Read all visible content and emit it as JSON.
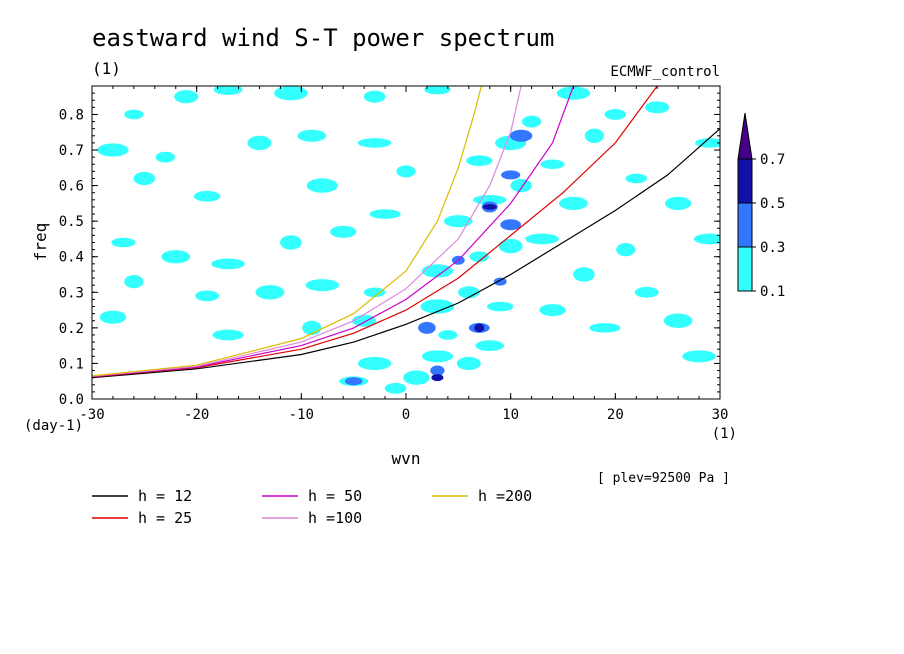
{
  "chart_data": {
    "type": "heatmap",
    "title": "eastward wind S-T power spectrum",
    "title_units": "(1)",
    "subtitle": "ECMWF_control",
    "xlabel": "wvn",
    "xunits": "(1)",
    "ylabel": "freq",
    "yunits": "(day-1)",
    "level_note": "[ plev=92500 Pa ]",
    "xlim": [
      -30,
      30
    ],
    "ylim": [
      0.0,
      0.88
    ],
    "x_ticks": [
      -30,
      -20,
      -10,
      0,
      10,
      20,
      30
    ],
    "x_tick_labels": [
      "-30",
      "-20",
      "-10",
      "0",
      "10",
      "20",
      "30"
    ],
    "y_ticks": [
      0.0,
      0.1,
      0.2,
      0.3,
      0.4,
      0.5,
      0.6,
      0.7,
      0.8
    ],
    "y_tick_labels": [
      "0.0",
      "0.1",
      "0.2",
      "0.3",
      "0.4",
      "0.5",
      "0.6",
      "0.7",
      "0.8"
    ],
    "colorbar": {
      "levels": [
        "0.1",
        "0.3",
        "0.5",
        "0.7"
      ],
      "colors": [
        "#33ffff",
        "#3377ff",
        "#1111aa",
        "#440088"
      ]
    },
    "grid": false,
    "series": [
      {
        "name": "h = 12",
        "color": "#000000",
        "points": [
          [
            -30,
            0.06
          ],
          [
            -20,
            0.085
          ],
          [
            -10,
            0.125
          ],
          [
            -5,
            0.16
          ],
          [
            0,
            0.21
          ],
          [
            5,
            0.27
          ],
          [
            10,
            0.35
          ],
          [
            15,
            0.44
          ],
          [
            20,
            0.53
          ],
          [
            25,
            0.63
          ],
          [
            30,
            0.76
          ]
        ]
      },
      {
        "name": "h = 25",
        "color": "#dd0000",
        "points": [
          [
            -30,
            0.062
          ],
          [
            -20,
            0.088
          ],
          [
            -10,
            0.14
          ],
          [
            -5,
            0.185
          ],
          [
            0,
            0.25
          ],
          [
            5,
            0.34
          ],
          [
            10,
            0.46
          ],
          [
            15,
            0.58
          ],
          [
            20,
            0.72
          ],
          [
            24,
            0.88
          ]
        ]
      },
      {
        "name": "h = 50",
        "color": "#cc00cc",
        "points": [
          [
            -30,
            0.063
          ],
          [
            -20,
            0.09
          ],
          [
            -10,
            0.15
          ],
          [
            -5,
            0.2
          ],
          [
            0,
            0.28
          ],
          [
            5,
            0.39
          ],
          [
            10,
            0.55
          ],
          [
            14,
            0.72
          ],
          [
            16,
            0.88
          ]
        ]
      },
      {
        "name": "h =100",
        "color": "#dd88dd",
        "points": [
          [
            -30,
            0.064
          ],
          [
            -20,
            0.092
          ],
          [
            -10,
            0.16
          ],
          [
            -5,
            0.22
          ],
          [
            0,
            0.31
          ],
          [
            5,
            0.45
          ],
          [
            8,
            0.6
          ],
          [
            10,
            0.75
          ],
          [
            11,
            0.88
          ]
        ]
      },
      {
        "name": "h =200",
        "color": "#ddbb00",
        "points": [
          [
            -30,
            0.065
          ],
          [
            -20,
            0.095
          ],
          [
            -10,
            0.17
          ],
          [
            -5,
            0.24
          ],
          [
            0,
            0.36
          ],
          [
            3,
            0.5
          ],
          [
            5,
            0.65
          ],
          [
            6.5,
            0.8
          ],
          [
            7.2,
            0.88
          ]
        ]
      }
    ],
    "patches": [
      {
        "x": -26,
        "y": 0.8,
        "level": 0
      },
      {
        "x": -21,
        "y": 0.85,
        "level": 0
      },
      {
        "x": -17,
        "y": 0.87,
        "level": 0
      },
      {
        "x": -11,
        "y": 0.86,
        "level": 0
      },
      {
        "x": -3,
        "y": 0.85,
        "level": 0
      },
      {
        "x": 3,
        "y": 0.87,
        "level": 0
      },
      {
        "x": -28,
        "y": 0.7,
        "level": 0
      },
      {
        "x": -23,
        "y": 0.68,
        "level": 0
      },
      {
        "x": -14,
        "y": 0.72,
        "level": 0
      },
      {
        "x": -9,
        "y": 0.74,
        "level": 0
      },
      {
        "x": -3,
        "y": 0.72,
        "level": 0
      },
      {
        "x": -25,
        "y": 0.62,
        "level": 0
      },
      {
        "x": -19,
        "y": 0.57,
        "level": 0
      },
      {
        "x": -8,
        "y": 0.6,
        "level": 0
      },
      {
        "x": 0,
        "y": 0.64,
        "level": 0
      },
      {
        "x": -27,
        "y": 0.44,
        "level": 0
      },
      {
        "x": -22,
        "y": 0.4,
        "level": 0
      },
      {
        "x": -17,
        "y": 0.38,
        "level": 0
      },
      {
        "x": -11,
        "y": 0.44,
        "level": 0
      },
      {
        "x": -6,
        "y": 0.47,
        "level": 0
      },
      {
        "x": -2,
        "y": 0.52,
        "level": 0
      },
      {
        "x": -26,
        "y": 0.33,
        "level": 0
      },
      {
        "x": -19,
        "y": 0.29,
        "level": 0
      },
      {
        "x": -13,
        "y": 0.3,
        "level": 0
      },
      {
        "x": -8,
        "y": 0.32,
        "level": 0
      },
      {
        "x": -3,
        "y": 0.3,
        "level": 0
      },
      {
        "x": -28,
        "y": 0.23,
        "level": 0
      },
      {
        "x": -17,
        "y": 0.18,
        "level": 0
      },
      {
        "x": -9,
        "y": 0.2,
        "level": 0
      },
      {
        "x": -4,
        "y": 0.22,
        "level": 0
      },
      {
        "x": -5,
        "y": 0.05,
        "level": 0
      },
      {
        "x": -3,
        "y": 0.1,
        "level": 0
      },
      {
        "x": -1,
        "y": 0.03,
        "level": 0
      },
      {
        "x": 1,
        "y": 0.06,
        "level": 0
      },
      {
        "x": 3,
        "y": 0.12,
        "level": 0
      },
      {
        "x": 4,
        "y": 0.18,
        "level": 0
      },
      {
        "x": 6,
        "y": 0.1,
        "level": 0
      },
      {
        "x": 8,
        "y": 0.15,
        "level": 0
      },
      {
        "x": 3,
        "y": 0.26,
        "level": 0
      },
      {
        "x": 6,
        "y": 0.3,
        "level": 0
      },
      {
        "x": 9,
        "y": 0.26,
        "level": 0
      },
      {
        "x": 3,
        "y": 0.36,
        "level": 0
      },
      {
        "x": 7,
        "y": 0.4,
        "level": 0
      },
      {
        "x": 10,
        "y": 0.43,
        "level": 0
      },
      {
        "x": 5,
        "y": 0.5,
        "level": 0
      },
      {
        "x": 8,
        "y": 0.56,
        "level": 0
      },
      {
        "x": 11,
        "y": 0.6,
        "level": 0
      },
      {
        "x": 7,
        "y": 0.67,
        "level": 0
      },
      {
        "x": 10,
        "y": 0.72,
        "level": 0
      },
      {
        "x": 12,
        "y": 0.78,
        "level": 0
      },
      {
        "x": 14,
        "y": 0.66,
        "level": 0
      },
      {
        "x": 16,
        "y": 0.55,
        "level": 0
      },
      {
        "x": 13,
        "y": 0.45,
        "level": 0
      },
      {
        "x": 17,
        "y": 0.35,
        "level": 0
      },
      {
        "x": 14,
        "y": 0.25,
        "level": 0
      },
      {
        "x": 19,
        "y": 0.2,
        "level": 0
      },
      {
        "x": 21,
        "y": 0.42,
        "level": 0
      },
      {
        "x": 23,
        "y": 0.3,
        "level": 0
      },
      {
        "x": 26,
        "y": 0.22,
        "level": 0
      },
      {
        "x": 28,
        "y": 0.12,
        "level": 0
      },
      {
        "x": 22,
        "y": 0.62,
        "level": 0
      },
      {
        "x": 26,
        "y": 0.55,
        "level": 0
      },
      {
        "x": 29,
        "y": 0.45,
        "level": 0
      },
      {
        "x": 18,
        "y": 0.74,
        "level": 0
      },
      {
        "x": 24,
        "y": 0.82,
        "level": 0
      },
      {
        "x": 29,
        "y": 0.72,
        "level": 0
      },
      {
        "x": 16,
        "y": 0.86,
        "level": 0
      },
      {
        "x": 20,
        "y": 0.8,
        "level": 0
      },
      {
        "x": 2,
        "y": 0.2,
        "level": 1
      },
      {
        "x": 7,
        "y": 0.2,
        "level": 1
      },
      {
        "x": 9,
        "y": 0.33,
        "level": 1
      },
      {
        "x": 8,
        "y": 0.54,
        "level": 1
      },
      {
        "x": 10,
        "y": 0.63,
        "level": 1
      },
      {
        "x": 11,
        "y": 0.74,
        "level": 1
      },
      {
        "x": 3,
        "y": 0.08,
        "level": 1
      },
      {
        "x": -5,
        "y": 0.05,
        "level": 1
      },
      {
        "x": 10,
        "y": 0.49,
        "level": 1
      },
      {
        "x": 5,
        "y": 0.39,
        "level": 1
      },
      {
        "x": 7,
        "y": 0.2,
        "level": 2
      },
      {
        "x": 3,
        "y": 0.06,
        "level": 2
      },
      {
        "x": 8,
        "y": 0.54,
        "level": 2
      }
    ]
  }
}
